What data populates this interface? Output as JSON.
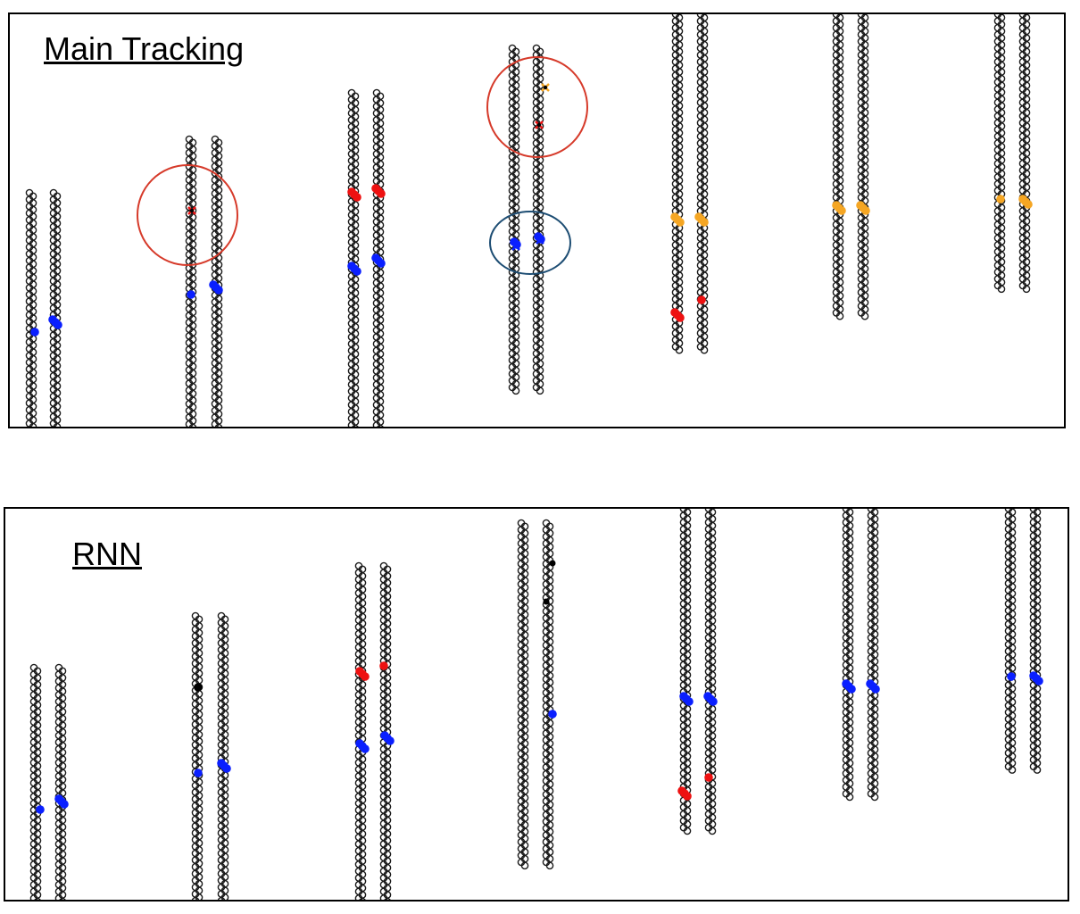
{
  "panels": [
    {
      "id": "main",
      "title": "Main Tracking"
    },
    {
      "id": "rnn",
      "title": "RNN"
    }
  ],
  "colors": {
    "blue_hit": "#0a1fff",
    "red_hit": "#ee1111",
    "orange_hit": "#f5a623",
    "black_hit": "#000000",
    "red_circle": "#d63a2a",
    "blue_circle": "#1d4d73"
  }
}
